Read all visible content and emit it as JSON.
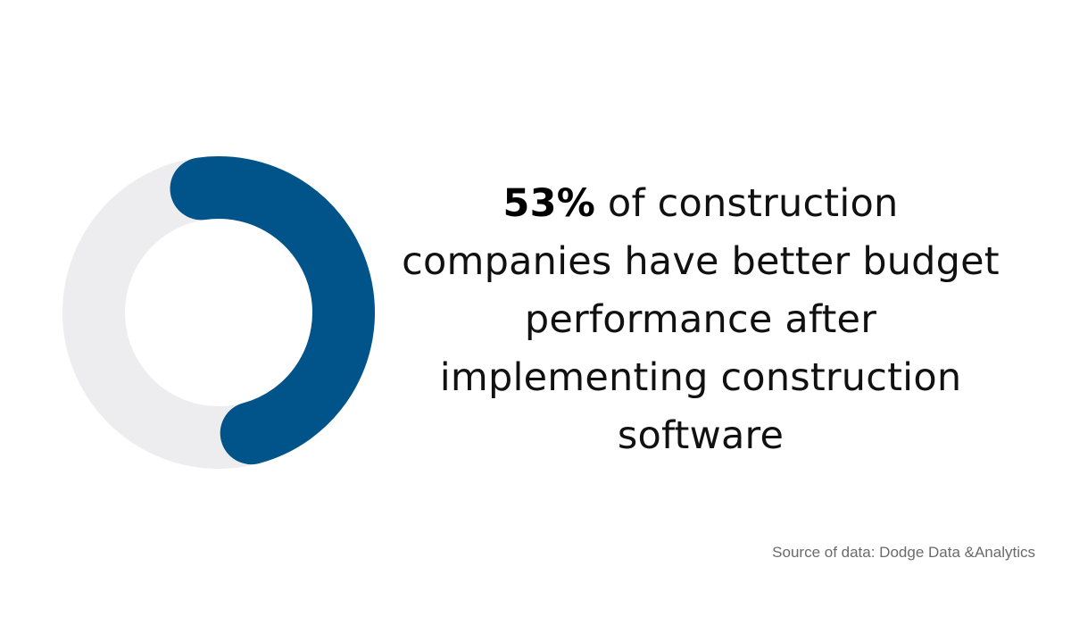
{
  "chart_data": {
    "type": "pie",
    "style": "donut",
    "values": [
      53,
      47
    ],
    "colors": {
      "highlight": "#00548A",
      "remainder": "#EDEDEF"
    }
  },
  "statement": {
    "highlight": "53%",
    "rest": " of construction companies have better budget performance after implementing construction software"
  },
  "source": "Source of data: Dodge Data &Analytics"
}
